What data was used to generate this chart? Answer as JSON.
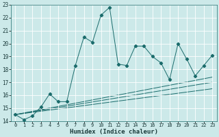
{
  "xlabel": "Humidex (Indice chaleur)",
  "xlim": [
    -0.5,
    23.5
  ],
  "ylim": [
    14,
    23
  ],
  "yticks": [
    14,
    15,
    16,
    17,
    18,
    19,
    20,
    21,
    22,
    23
  ],
  "xticks": [
    0,
    1,
    2,
    3,
    4,
    5,
    6,
    7,
    8,
    9,
    10,
    11,
    12,
    13,
    14,
    15,
    16,
    17,
    18,
    19,
    20,
    21,
    22,
    23
  ],
  "background_color": "#cce9e9",
  "grid_color": "#ffffff",
  "line_color": "#1a6b6b",
  "main_series": {
    "x": [
      0,
      1,
      2,
      3,
      4,
      5,
      6,
      7,
      8,
      9,
      10,
      11,
      12,
      13,
      14,
      15,
      16,
      17,
      18,
      19,
      20,
      21,
      22,
      23
    ],
    "y": [
      14.5,
      14.1,
      14.4,
      15.1,
      16.1,
      15.5,
      15.5,
      18.3,
      20.5,
      20.1,
      22.2,
      22.8,
      18.4,
      18.3,
      19.8,
      19.8,
      19.0,
      18.5,
      17.2,
      20.0,
      18.8,
      17.5,
      18.3,
      19.1
    ]
  },
  "trend_lines": [
    {
      "x": [
        0,
        23
      ],
      "y": [
        14.5,
        16.5
      ]
    },
    {
      "x": [
        0,
        23
      ],
      "y": [
        14.5,
        17.0
      ]
    },
    {
      "x": [
        0,
        23
      ],
      "y": [
        14.5,
        17.4
      ]
    }
  ]
}
